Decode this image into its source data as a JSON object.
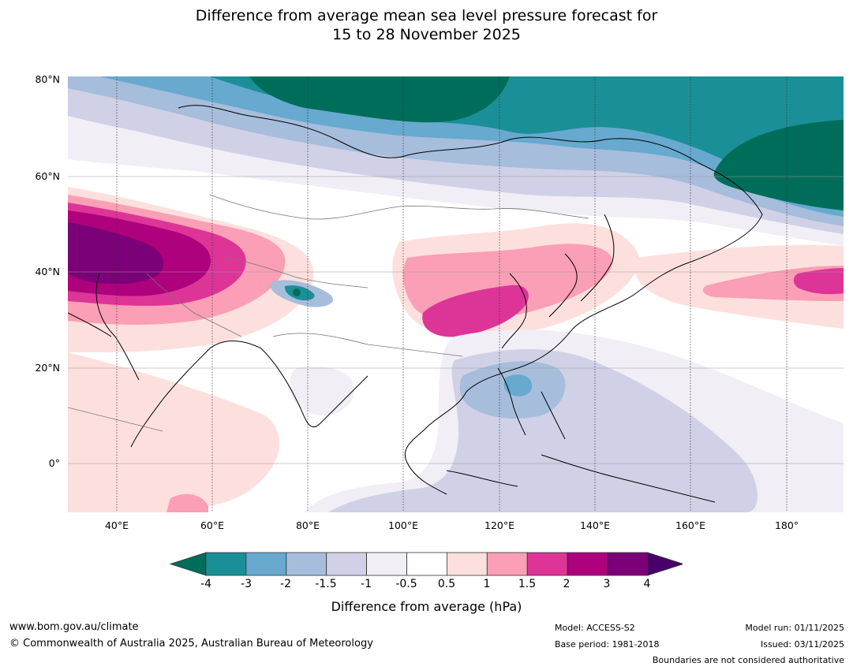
{
  "title": {
    "line1": "Difference from average mean sea level pressure forecast for",
    "line2": "15 to 28 November 2025"
  },
  "axes": {
    "lat_labels": [
      "80°N",
      "60°N",
      "40°N",
      "20°N",
      "0°"
    ],
    "lon_labels": [
      "40°E",
      "60°E",
      "80°E",
      "100°E",
      "120°E",
      "140°E",
      "160°E",
      "180°"
    ]
  },
  "colorbar": {
    "title": "Difference from average (hPa)",
    "tick_labels": [
      "-4",
      "-3",
      "-2",
      "-1.5",
      "-1",
      "-0.5",
      "0.5",
      "1",
      "1.5",
      "2",
      "3",
      "4"
    ],
    "colors": {
      "below_min": "#006d5b",
      "n4_n3": "#1b8f98",
      "n3_n2": "#67a9cf",
      "n2_n15": "#a6bddb",
      "n15_n1": "#d0d1e6",
      "n1_n05": "#f1eef6",
      "neutral": "#ffffff",
      "p05_p1": "#fde0dd",
      "p1_p15": "#fa9fb5",
      "p15_p2": "#dd3497",
      "p2_p3": "#ae017e",
      "p3_p4": "#7a0177",
      "above_max": "#49006a"
    }
  },
  "footer": {
    "website": "www.bom.gov.au/climate",
    "copyright": "© Commonwealth of Australia 2025, Australian Bureau of Meteorology",
    "model": "Model: ACCESS-S2",
    "base_period": "Base period: 1981-2018",
    "model_run": "Model run: 01/11/2025",
    "issued": "Issued: 03/11/2025",
    "disclaimer": "Boundaries are not considered authoritative"
  }
}
